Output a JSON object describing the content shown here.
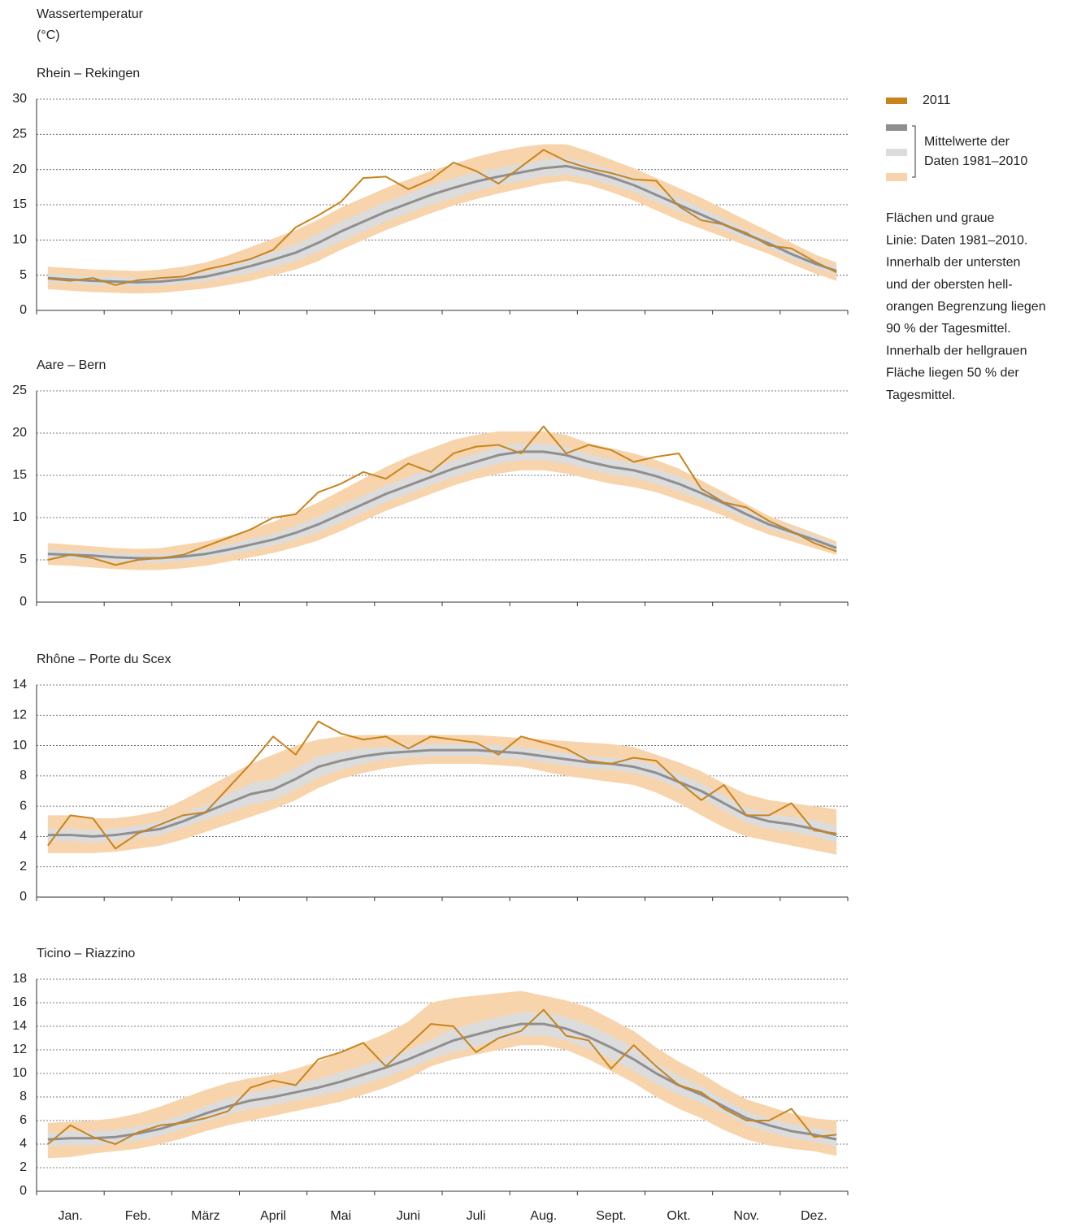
{
  "header": {
    "title": "Wassertemperatur",
    "unit": "(°C)"
  },
  "legend": {
    "position": "right",
    "bracket_label": [
      "Mittelwerte der",
      "Daten 1981–2010"
    ]
  },
  "note": [
    "Flächen und graue",
    "Linie: Daten 1981–2010.",
    "Innerhalb der untersten",
    "und der obersten hell-",
    "orangen Begrenzung liegen",
    "90 % der Tagesmittel.",
    "Innerhalb der hellgrauen",
    "Fläche liegen 50 % der",
    "Tagesmittel."
  ],
  "chart_data": [
    {
      "type": "line",
      "title": "Rhein – Rekingen",
      "ylim": [
        0,
        30
      ],
      "yticks": [
        0,
        5,
        10,
        15,
        20,
        25,
        30
      ],
      "grid": true,
      "series": [
        {
          "name": "2011",
          "color": "#c8841c",
          "values": [
            4.5,
            4.2,
            4.6,
            3.6,
            4.3,
            4.6,
            4.8,
            5.8,
            6.5,
            7.3,
            8.6,
            11.8,
            13.5,
            15.4,
            18.8,
            19.0,
            17.2,
            18.6,
            21.0,
            19.8,
            18.0,
            20.4,
            22.8,
            21.2,
            20.2,
            19.5,
            18.6,
            18.4,
            14.8,
            12.8,
            12.2,
            11.0,
            9.2,
            8.8,
            7.0,
            5.4
          ]
        }
      ],
      "mean": {
        "color": "#8f8f8f",
        "values": [
          4.6,
          4.4,
          4.2,
          4.1,
          4.0,
          4.1,
          4.4,
          4.8,
          5.5,
          6.3,
          7.2,
          8.2,
          9.6,
          11.2,
          12.6,
          14.0,
          15.2,
          16.4,
          17.4,
          18.3,
          19.0,
          19.6,
          20.2,
          20.5,
          19.8,
          18.9,
          17.8,
          16.4,
          15.0,
          13.6,
          12.2,
          10.8,
          9.5,
          8.0,
          6.7,
          5.6
        ]
      },
      "band50": {
        "color": "#dcdcdc",
        "low": [
          4.0,
          3.8,
          3.6,
          3.5,
          3.4,
          3.5,
          3.8,
          4.1,
          4.7,
          5.3,
          6.1,
          7.0,
          8.3,
          9.8,
          11.2,
          12.6,
          13.8,
          15.0,
          16.0,
          17.0,
          17.8,
          18.4,
          19.0,
          19.3,
          18.7,
          17.8,
          16.8,
          15.4,
          14.0,
          12.7,
          11.4,
          10.1,
          8.8,
          7.4,
          6.1,
          5.1
        ],
        "high": [
          5.2,
          5.0,
          4.8,
          4.7,
          4.6,
          4.7,
          5.0,
          5.5,
          6.3,
          7.3,
          8.3,
          9.4,
          10.9,
          12.6,
          14.0,
          15.4,
          16.6,
          17.8,
          18.8,
          19.6,
          20.2,
          20.8,
          21.4,
          21.7,
          20.9,
          20.0,
          18.8,
          17.4,
          16.0,
          14.5,
          13.0,
          11.5,
          10.2,
          8.6,
          7.3,
          6.1
        ]
      },
      "band90": {
        "color": "#f7d4ab",
        "low": [
          3.0,
          2.8,
          2.6,
          2.5,
          2.4,
          2.5,
          2.8,
          3.1,
          3.6,
          4.2,
          5.0,
          5.8,
          7.0,
          8.6,
          10.0,
          11.4,
          12.6,
          13.8,
          14.9,
          15.8,
          16.6,
          17.3,
          18.0,
          18.4,
          17.8,
          16.8,
          15.6,
          14.2,
          12.8,
          11.6,
          10.4,
          9.2,
          8.0,
          6.6,
          5.3,
          4.2
        ],
        "high": [
          6.2,
          6.0,
          5.8,
          5.7,
          5.6,
          5.8,
          6.2,
          6.8,
          7.8,
          9.0,
          10.2,
          11.4,
          12.9,
          14.6,
          16.0,
          17.4,
          18.6,
          19.8,
          20.8,
          21.8,
          22.6,
          23.2,
          23.6,
          23.6,
          22.6,
          21.4,
          20.2,
          18.8,
          17.4,
          16.0,
          14.4,
          12.8,
          11.2,
          9.6,
          8.0,
          6.8
        ]
      }
    },
    {
      "type": "line",
      "title": "Aare – Bern",
      "ylim": [
        0,
        25
      ],
      "yticks": [
        0,
        5,
        10,
        15,
        20,
        25
      ],
      "grid": true,
      "series": [
        {
          "name": "2011",
          "color": "#c8841c",
          "values": [
            5.0,
            5.6,
            5.2,
            4.4,
            5.0,
            5.2,
            5.6,
            6.6,
            7.6,
            8.6,
            10.0,
            10.4,
            13.0,
            14.0,
            15.4,
            14.6,
            16.4,
            15.4,
            17.6,
            18.4,
            18.6,
            17.6,
            20.8,
            17.6,
            18.6,
            18.0,
            16.6,
            17.2,
            17.6,
            13.4,
            11.8,
            11.2,
            9.6,
            8.4,
            7.0,
            6.0
          ]
        }
      ],
      "mean": {
        "color": "#8f8f8f",
        "values": [
          5.7,
          5.6,
          5.5,
          5.3,
          5.2,
          5.2,
          5.4,
          5.7,
          6.2,
          6.8,
          7.4,
          8.2,
          9.2,
          10.4,
          11.6,
          12.8,
          13.8,
          14.8,
          15.8,
          16.6,
          17.4,
          17.8,
          17.8,
          17.4,
          16.6,
          16.0,
          15.6,
          14.9,
          14.0,
          12.9,
          11.7,
          10.4,
          9.2,
          8.3,
          7.4,
          6.4
        ]
      },
      "band50": {
        "color": "#dcdcdc",
        "low": [
          5.2,
          5.1,
          5.0,
          4.8,
          4.7,
          4.7,
          4.9,
          5.2,
          5.6,
          6.1,
          6.7,
          7.4,
          8.3,
          9.4,
          10.6,
          11.8,
          12.8,
          13.8,
          14.8,
          15.6,
          16.4,
          16.8,
          16.8,
          16.4,
          15.7,
          15.1,
          14.7,
          14.0,
          13.1,
          12.1,
          11.0,
          9.8,
          8.7,
          7.8,
          6.9,
          6.0
        ],
        "high": [
          6.2,
          6.1,
          6.0,
          5.8,
          5.7,
          5.7,
          5.9,
          6.2,
          6.8,
          7.5,
          8.1,
          9.0,
          10.1,
          11.4,
          12.6,
          13.8,
          14.8,
          15.8,
          16.8,
          17.6,
          18.4,
          18.8,
          18.8,
          18.4,
          17.5,
          16.9,
          16.5,
          15.8,
          14.9,
          13.7,
          12.4,
          11.0,
          9.7,
          8.8,
          7.9,
          6.8
        ]
      },
      "band90": {
        "color": "#f7d4ab",
        "low": [
          4.4,
          4.3,
          4.1,
          3.9,
          3.8,
          3.8,
          4.0,
          4.3,
          4.8,
          5.3,
          5.8,
          6.5,
          7.3,
          8.4,
          9.6,
          10.8,
          11.8,
          12.8,
          13.8,
          14.6,
          15.2,
          15.6,
          15.6,
          15.2,
          14.6,
          14.0,
          13.6,
          13.0,
          12.1,
          11.2,
          10.2,
          9.0,
          8.0,
          7.2,
          6.4,
          5.6
        ],
        "high": [
          7.0,
          6.8,
          6.6,
          6.4,
          6.3,
          6.4,
          6.8,
          7.2,
          7.8,
          8.6,
          9.5,
          10.6,
          11.8,
          13.2,
          14.6,
          16.0,
          17.2,
          18.2,
          19.2,
          19.8,
          20.2,
          20.2,
          20.2,
          19.8,
          18.8,
          18.2,
          17.6,
          16.8,
          15.8,
          14.4,
          13.0,
          11.6,
          10.2,
          9.2,
          8.2,
          7.2
        ]
      }
    },
    {
      "type": "line",
      "title": "Rhône – Porte du Scex",
      "ylim": [
        0,
        14
      ],
      "yticks": [
        0,
        2,
        4,
        6,
        8,
        10,
        12,
        14
      ],
      "grid": true,
      "series": [
        {
          "name": "2011",
          "color": "#c8841c",
          "values": [
            3.4,
            5.4,
            5.2,
            3.2,
            4.2,
            4.8,
            5.4,
            5.6,
            7.2,
            8.8,
            10.6,
            9.4,
            11.6,
            10.8,
            10.4,
            10.6,
            9.8,
            10.6,
            10.4,
            10.2,
            9.4,
            10.6,
            10.2,
            9.8,
            9.0,
            8.8,
            9.2,
            9.0,
            7.6,
            6.4,
            7.4,
            5.4,
            5.4,
            6.2,
            4.4,
            4.2
          ]
        }
      ],
      "mean": {
        "color": "#8f8f8f",
        "values": [
          4.1,
          4.1,
          4.0,
          4.1,
          4.3,
          4.5,
          5.0,
          5.6,
          6.2,
          6.8,
          7.1,
          7.8,
          8.6,
          9.0,
          9.3,
          9.5,
          9.6,
          9.7,
          9.7,
          9.7,
          9.6,
          9.5,
          9.3,
          9.1,
          8.9,
          8.8,
          8.6,
          8.2,
          7.6,
          7.0,
          6.2,
          5.4,
          5.0,
          4.8,
          4.5,
          4.1
        ]
      },
      "band50": {
        "color": "#dcdcdc",
        "low": [
          3.7,
          3.7,
          3.6,
          3.7,
          3.9,
          4.1,
          4.6,
          5.1,
          5.6,
          6.1,
          6.4,
          7.1,
          7.9,
          8.4,
          8.8,
          9.1,
          9.2,
          9.3,
          9.3,
          9.3,
          9.2,
          9.1,
          8.9,
          8.7,
          8.5,
          8.4,
          8.2,
          7.8,
          7.2,
          6.6,
          5.7,
          4.9,
          4.5,
          4.3,
          4.0,
          3.6
        ],
        "high": [
          4.5,
          4.5,
          4.4,
          4.5,
          4.7,
          5.0,
          5.5,
          6.1,
          6.8,
          7.5,
          7.8,
          8.5,
          9.3,
          9.6,
          9.8,
          9.9,
          10.0,
          10.1,
          10.1,
          10.1,
          10.0,
          9.9,
          9.7,
          9.5,
          9.3,
          9.2,
          9.1,
          8.7,
          8.1,
          7.5,
          6.7,
          5.9,
          5.5,
          5.3,
          5.1,
          4.7
        ]
      },
      "band90": {
        "color": "#f7d4ab",
        "low": [
          2.9,
          2.9,
          2.9,
          3.0,
          3.2,
          3.4,
          3.8,
          4.3,
          4.8,
          5.3,
          5.8,
          6.4,
          7.2,
          7.8,
          8.2,
          8.5,
          8.7,
          8.8,
          8.8,
          8.8,
          8.7,
          8.6,
          8.3,
          8.0,
          7.8,
          7.6,
          7.4,
          6.9,
          6.2,
          5.4,
          4.6,
          4.0,
          3.7,
          3.4,
          3.1,
          2.8
        ],
        "high": [
          5.4,
          5.4,
          5.2,
          5.2,
          5.4,
          5.7,
          6.4,
          7.2,
          8.0,
          8.8,
          9.4,
          10.0,
          10.4,
          10.6,
          10.7,
          10.7,
          10.7,
          10.7,
          10.7,
          10.7,
          10.6,
          10.5,
          10.4,
          10.3,
          10.2,
          10.1,
          9.9,
          9.4,
          8.9,
          8.3,
          7.5,
          6.8,
          6.4,
          6.2,
          6.0,
          5.8
        ]
      }
    },
    {
      "type": "line",
      "title": "Ticino – Riazzino",
      "ylim": [
        0,
        18
      ],
      "yticks": [
        0,
        2,
        4,
        6,
        8,
        10,
        12,
        14,
        16,
        18
      ],
      "grid": true,
      "categories": [
        null,
        "Jan.",
        null,
        null,
        "Feb.",
        null,
        null,
        "März",
        null,
        null,
        "April",
        null,
        null,
        "Mai",
        null,
        null,
        "Juni",
        null,
        null,
        "Juli",
        null,
        null,
        "Aug.",
        null,
        null,
        "Sept.",
        null,
        null,
        "Okt.",
        null,
        null,
        "Nov.",
        null,
        null,
        "Dez.",
        null
      ],
      "series": [
        {
          "name": "2011",
          "color": "#c8841c",
          "values": [
            4.0,
            5.6,
            4.6,
            4.0,
            5.0,
            5.6,
            5.8,
            6.2,
            6.8,
            8.8,
            9.4,
            9.0,
            11.2,
            11.8,
            12.6,
            10.6,
            12.4,
            14.2,
            14.0,
            11.8,
            13.0,
            13.6,
            15.4,
            13.2,
            12.8,
            10.4,
            12.4,
            10.6,
            9.0,
            8.4,
            7.0,
            6.0,
            6.0,
            7.0,
            4.6,
            4.8
          ]
        }
      ],
      "mean": {
        "color": "#8f8f8f",
        "values": [
          4.4,
          4.5,
          4.5,
          4.6,
          4.9,
          5.3,
          5.9,
          6.6,
          7.2,
          7.7,
          8.0,
          8.4,
          8.8,
          9.3,
          9.9,
          10.5,
          11.2,
          12.0,
          12.8,
          13.3,
          13.8,
          14.2,
          14.2,
          13.8,
          13.1,
          12.2,
          11.2,
          10.0,
          9.0,
          8.2,
          7.2,
          6.2,
          5.6,
          5.1,
          4.8,
          4.4
        ]
      },
      "band50": {
        "color": "#dcdcdc",
        "low": [
          3.8,
          3.9,
          3.9,
          4.0,
          4.3,
          4.7,
          5.3,
          5.9,
          6.5,
          7.0,
          7.3,
          7.7,
          8.1,
          8.5,
          9.1,
          9.7,
          10.4,
          11.2,
          11.8,
          12.3,
          12.8,
          13.2,
          13.2,
          12.8,
          12.1,
          11.2,
          10.2,
          9.1,
          8.2,
          7.5,
          6.6,
          5.6,
          5.0,
          4.5,
          4.2,
          3.8
        ],
        "high": [
          5.0,
          5.1,
          5.1,
          5.2,
          5.5,
          5.9,
          6.5,
          7.2,
          7.9,
          8.4,
          8.7,
          9.1,
          9.5,
          10.1,
          10.7,
          11.3,
          12.0,
          12.8,
          13.8,
          14.3,
          14.8,
          15.2,
          15.2,
          14.8,
          14.1,
          13.2,
          12.2,
          10.9,
          9.8,
          8.9,
          7.8,
          6.8,
          6.2,
          5.7,
          5.4,
          5.0
        ]
      },
      "band90": {
        "color": "#f7d4ab",
        "low": [
          2.8,
          2.9,
          3.2,
          3.4,
          3.6,
          4.0,
          4.5,
          5.1,
          5.6,
          6.0,
          6.4,
          6.8,
          7.2,
          7.6,
          8.2,
          8.8,
          9.6,
          10.6,
          11.2,
          11.6,
          12.0,
          12.4,
          12.4,
          12.0,
          11.2,
          10.2,
          9.2,
          8.0,
          7.0,
          6.2,
          5.2,
          4.4,
          3.9,
          3.6,
          3.4,
          3.0
        ],
        "high": [
          5.8,
          5.9,
          6.0,
          6.2,
          6.6,
          7.2,
          7.9,
          8.6,
          9.2,
          9.6,
          9.9,
          10.4,
          11.0,
          11.8,
          12.6,
          13.4,
          14.4,
          16.0,
          16.4,
          16.6,
          16.8,
          17.0,
          16.6,
          16.2,
          15.6,
          14.6,
          13.6,
          12.2,
          11.0,
          10.0,
          8.8,
          7.8,
          7.2,
          6.6,
          6.2,
          6.0
        ]
      }
    }
  ]
}
